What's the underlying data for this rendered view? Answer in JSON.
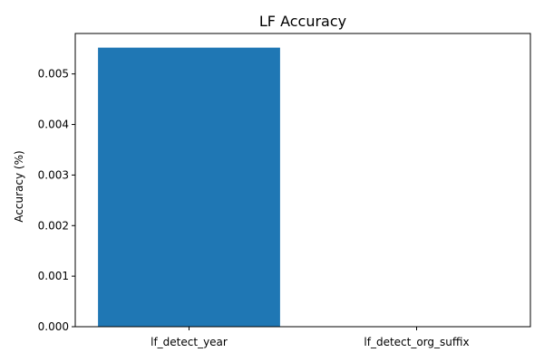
{
  "chart_data": {
    "type": "bar",
    "title": "LF Accuracy",
    "xlabel": "",
    "ylabel": "Accuracy (%)",
    "categories": [
      "lf_detect_year",
      "lf_detect_org_suffix"
    ],
    "values": [
      0.00552,
      0.0
    ],
    "ylim": [
      0,
      0.0058
    ],
    "yticks": [
      0.0,
      0.001,
      0.002,
      0.003,
      0.004,
      0.005
    ],
    "ytick_labels": [
      "0.000",
      "0.001",
      "0.002",
      "0.003",
      "0.004",
      "0.005"
    ],
    "grid": false,
    "bar_color": "#1f77b4"
  }
}
